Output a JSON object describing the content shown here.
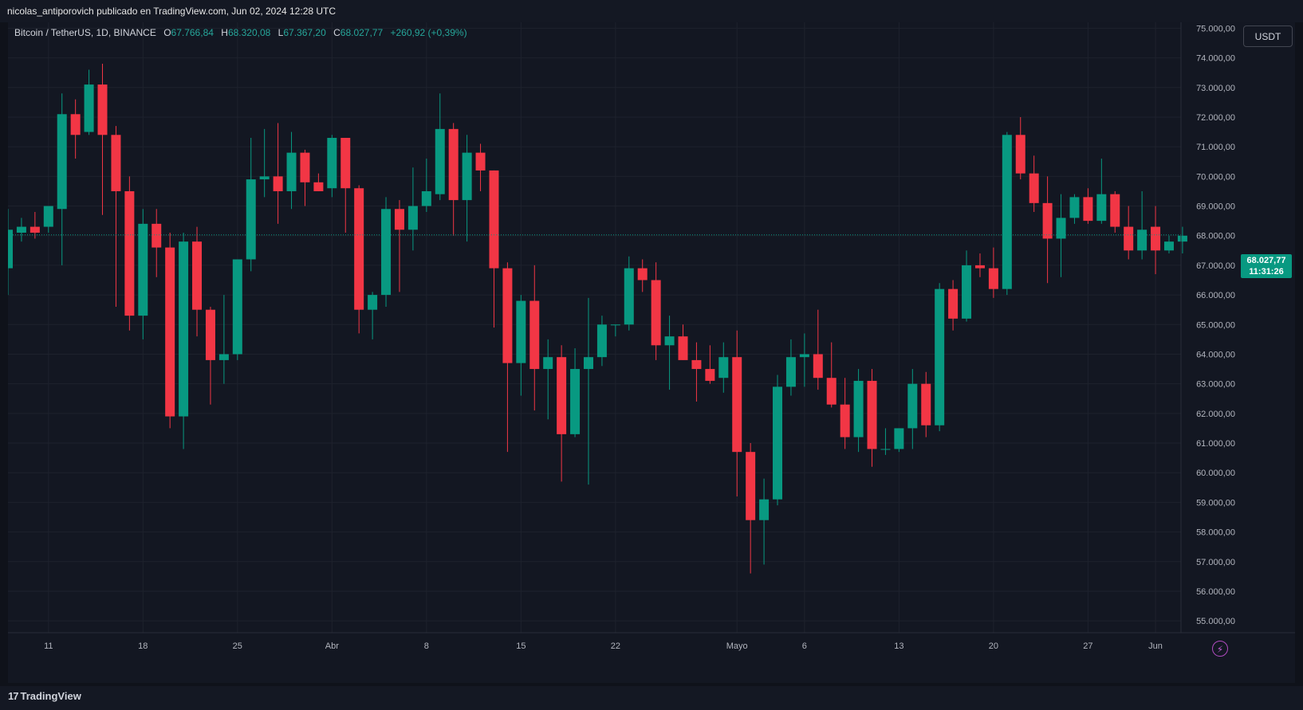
{
  "header": {
    "published_by": "nicolas_antiporovich publicado en TradingView.com, Jun 02, 2024 12:28 UTC"
  },
  "legend": {
    "symbol": "Bitcoin / TetherUS, 1D, BINANCE",
    "open_label": "O",
    "open": "67.766,84",
    "high_label": "H",
    "high": "68.320,08",
    "low_label": "L",
    "low": "67.367,20",
    "close_label": "C",
    "close": "68.027,77",
    "change": "+260,92 (+0,39%)"
  },
  "currency_button": "USDT",
  "last_price": {
    "price": "68.027,77",
    "countdown": "11:31:26"
  },
  "branding": {
    "logo": "TradingView",
    "logo_mark": "17"
  },
  "colors": {
    "up": "#089981",
    "down": "#f23645",
    "background": "#131722",
    "grid": "#1e222d",
    "text": "#b2b5be"
  },
  "icons": {
    "alert": "lightning-bolt-icon"
  },
  "chart_data": {
    "type": "candlestick",
    "title": "Bitcoin / TetherUS, 1D, BINANCE",
    "ylim": [
      54600,
      75200
    ],
    "y_ticks": [
      55000,
      56000,
      57000,
      58000,
      59000,
      60000,
      61000,
      62000,
      63000,
      64000,
      65000,
      66000,
      67000,
      68000,
      69000,
      70000,
      71000,
      72000,
      73000,
      74000,
      75000
    ],
    "y_tick_labels": [
      "55.000,00",
      "56.000,00",
      "57.000,00",
      "58.000,00",
      "59.000,00",
      "60.000,00",
      "61.000,00",
      "62.000,00",
      "63.000,00",
      "64.000,00",
      "65.000,00",
      "66.000,00",
      "67.000,00",
      "68.000,00",
      "69.000,00",
      "70.000,00",
      "71.000,00",
      "72.000,00",
      "73.000,00",
      "74.000,00",
      "75.000,00"
    ],
    "x_labels": [
      {
        "label": "11",
        "index": 3
      },
      {
        "label": "18",
        "index": 10
      },
      {
        "label": "25",
        "index": 17
      },
      {
        "label": "Abr",
        "index": 24
      },
      {
        "label": "8",
        "index": 31
      },
      {
        "label": "15",
        "index": 38
      },
      {
        "label": "22",
        "index": 45
      },
      {
        "label": "Mayo",
        "index": 54
      },
      {
        "label": "6",
        "index": 59
      },
      {
        "label": "13",
        "index": 66
      },
      {
        "label": "20",
        "index": 73
      },
      {
        "label": "27",
        "index": 80
      },
      {
        "label": "Jun",
        "index": 85
      }
    ],
    "candles": [
      {
        "o": 66900,
        "h": 68900,
        "l": 66000,
        "c": 68200
      },
      {
        "o": 68100,
        "h": 68600,
        "l": 67800,
        "c": 68300
      },
      {
        "o": 68300,
        "h": 68800,
        "l": 67900,
        "c": 68100
      },
      {
        "o": 68300,
        "h": 69000,
        "l": 68100,
        "c": 69000
      },
      {
        "o": 68900,
        "h": 72800,
        "l": 67000,
        "c": 72100
      },
      {
        "o": 72100,
        "h": 72600,
        "l": 70600,
        "c": 71400
      },
      {
        "o": 71500,
        "h": 73600,
        "l": 71400,
        "c": 73100
      },
      {
        "o": 73100,
        "h": 73800,
        "l": 68700,
        "c": 71400
      },
      {
        "o": 71400,
        "h": 71700,
        "l": 65600,
        "c": 69500
      },
      {
        "o": 69500,
        "h": 70000,
        "l": 64800,
        "c": 65300
      },
      {
        "o": 65300,
        "h": 68900,
        "l": 64500,
        "c": 68400
      },
      {
        "o": 68400,
        "h": 68900,
        "l": 66600,
        "c": 67600
      },
      {
        "o": 67600,
        "h": 68100,
        "l": 61500,
        "c": 61900
      },
      {
        "o": 61900,
        "h": 68100,
        "l": 60800,
        "c": 67800
      },
      {
        "o": 67800,
        "h": 68300,
        "l": 64600,
        "c": 65500
      },
      {
        "o": 65500,
        "h": 65600,
        "l": 62300,
        "c": 63800
      },
      {
        "o": 63800,
        "h": 66000,
        "l": 63000,
        "c": 64000
      },
      {
        "o": 64000,
        "h": 67200,
        "l": 63800,
        "c": 67200
      },
      {
        "o": 67200,
        "h": 71300,
        "l": 66800,
        "c": 69900
      },
      {
        "o": 69900,
        "h": 71600,
        "l": 69300,
        "c": 70000
      },
      {
        "o": 70000,
        "h": 71800,
        "l": 68400,
        "c": 69500
      },
      {
        "o": 69500,
        "h": 71500,
        "l": 68900,
        "c": 70800
      },
      {
        "o": 70800,
        "h": 70900,
        "l": 69000,
        "c": 69800
      },
      {
        "o": 69800,
        "h": 70100,
        "l": 69500,
        "c": 69500
      },
      {
        "o": 69600,
        "h": 71400,
        "l": 69300,
        "c": 71300
      },
      {
        "o": 71300,
        "h": 71300,
        "l": 68100,
        "c": 69600
      },
      {
        "o": 69600,
        "h": 69700,
        "l": 64700,
        "c": 65500
      },
      {
        "o": 65500,
        "h": 66100,
        "l": 64500,
        "c": 66000
      },
      {
        "o": 66000,
        "h": 69300,
        "l": 65600,
        "c": 68900
      },
      {
        "o": 68900,
        "h": 69200,
        "l": 66100,
        "c": 68200
      },
      {
        "o": 68200,
        "h": 70300,
        "l": 67500,
        "c": 69000
      },
      {
        "o": 69000,
        "h": 70600,
        "l": 68800,
        "c": 69500
      },
      {
        "o": 69400,
        "h": 72800,
        "l": 69200,
        "c": 71600
      },
      {
        "o": 71600,
        "h": 71800,
        "l": 68000,
        "c": 69200
      },
      {
        "o": 69200,
        "h": 71400,
        "l": 67800,
        "c": 70800
      },
      {
        "o": 70800,
        "h": 71100,
        "l": 69500,
        "c": 70200
      },
      {
        "o": 70200,
        "h": 70200,
        "l": 64900,
        "c": 66900
      },
      {
        "o": 66900,
        "h": 67100,
        "l": 60700,
        "c": 63700
      },
      {
        "o": 63700,
        "h": 66000,
        "l": 62600,
        "c": 65800
      },
      {
        "o": 65800,
        "h": 67000,
        "l": 62100,
        "c": 63500
      },
      {
        "o": 63500,
        "h": 64500,
        "l": 61800,
        "c": 63900
      },
      {
        "o": 63900,
        "h": 64300,
        "l": 59700,
        "c": 61300
      },
      {
        "o": 61300,
        "h": 64200,
        "l": 61200,
        "c": 63500
      },
      {
        "o": 63500,
        "h": 65900,
        "l": 59600,
        "c": 63900
      },
      {
        "o": 63900,
        "h": 65300,
        "l": 63600,
        "c": 65000
      },
      {
        "o": 65000,
        "h": 65000,
        "l": 64600,
        "c": 65000
      },
      {
        "o": 65000,
        "h": 67300,
        "l": 64800,
        "c": 66900
      },
      {
        "o": 66900,
        "h": 67200,
        "l": 66100,
        "c": 66500
      },
      {
        "o": 66500,
        "h": 67100,
        "l": 63800,
        "c": 64300
      },
      {
        "o": 64300,
        "h": 65300,
        "l": 62800,
        "c": 64600
      },
      {
        "o": 64600,
        "h": 65000,
        "l": 63800,
        "c": 63800
      },
      {
        "o": 63800,
        "h": 64400,
        "l": 62400,
        "c": 63500
      },
      {
        "o": 63500,
        "h": 64300,
        "l": 63000,
        "c": 63100
      },
      {
        "o": 63200,
        "h": 64400,
        "l": 62700,
        "c": 63900
      },
      {
        "o": 63900,
        "h": 64800,
        "l": 59200,
        "c": 60700
      },
      {
        "o": 60700,
        "h": 61000,
        "l": 56600,
        "c": 58400
      },
      {
        "o": 58400,
        "h": 59800,
        "l": 56900,
        "c": 59100
      },
      {
        "o": 59100,
        "h": 63300,
        "l": 58900,
        "c": 62900
      },
      {
        "o": 62900,
        "h": 64500,
        "l": 62600,
        "c": 63900
      },
      {
        "o": 63900,
        "h": 64700,
        "l": 62900,
        "c": 64000
      },
      {
        "o": 64000,
        "h": 65500,
        "l": 62800,
        "c": 63200
      },
      {
        "o": 63200,
        "h": 64400,
        "l": 62200,
        "c": 62300
      },
      {
        "o": 62300,
        "h": 63200,
        "l": 60800,
        "c": 61200
      },
      {
        "o": 61200,
        "h": 63500,
        "l": 60700,
        "c": 63100
      },
      {
        "o": 63100,
        "h": 63500,
        "l": 60200,
        "c": 60800
      },
      {
        "o": 60800,
        "h": 61500,
        "l": 60600,
        "c": 60800
      },
      {
        "o": 60800,
        "h": 61500,
        "l": 60700,
        "c": 61500
      },
      {
        "o": 61500,
        "h": 63500,
        "l": 60800,
        "c": 63000
      },
      {
        "o": 63000,
        "h": 63400,
        "l": 61200,
        "c": 61600
      },
      {
        "o": 61600,
        "h": 66400,
        "l": 61400,
        "c": 66200
      },
      {
        "o": 66200,
        "h": 66500,
        "l": 64800,
        "c": 65200
      },
      {
        "o": 65200,
        "h": 67500,
        "l": 65100,
        "c": 67000
      },
      {
        "o": 67000,
        "h": 67400,
        "l": 66600,
        "c": 66900
      },
      {
        "o": 66900,
        "h": 67600,
        "l": 65900,
        "c": 66200
      },
      {
        "o": 66200,
        "h": 71500,
        "l": 66000,
        "c": 71400
      },
      {
        "o": 71400,
        "h": 72000,
        "l": 69900,
        "c": 70100
      },
      {
        "o": 70100,
        "h": 70700,
        "l": 68800,
        "c": 69100
      },
      {
        "o": 69100,
        "h": 70000,
        "l": 66400,
        "c": 67900
      },
      {
        "o": 67900,
        "h": 69400,
        "l": 66600,
        "c": 68600
      },
      {
        "o": 68600,
        "h": 69400,
        "l": 68400,
        "c": 69300
      },
      {
        "o": 69300,
        "h": 69600,
        "l": 68400,
        "c": 68500
      },
      {
        "o": 68500,
        "h": 70600,
        "l": 68400,
        "c": 69400
      },
      {
        "o": 69400,
        "h": 69500,
        "l": 68100,
        "c": 68300
      },
      {
        "o": 68300,
        "h": 69000,
        "l": 67200,
        "c": 67500
      },
      {
        "o": 67500,
        "h": 69500,
        "l": 67200,
        "c": 68200
      },
      {
        "o": 68300,
        "h": 69000,
        "l": 66700,
        "c": 67500
      },
      {
        "o": 67500,
        "h": 68000,
        "l": 67400,
        "c": 67800
      },
      {
        "o": 67800,
        "h": 68300,
        "l": 67400,
        "c": 68000
      }
    ],
    "last_price": 68027.77,
    "grid": true
  }
}
